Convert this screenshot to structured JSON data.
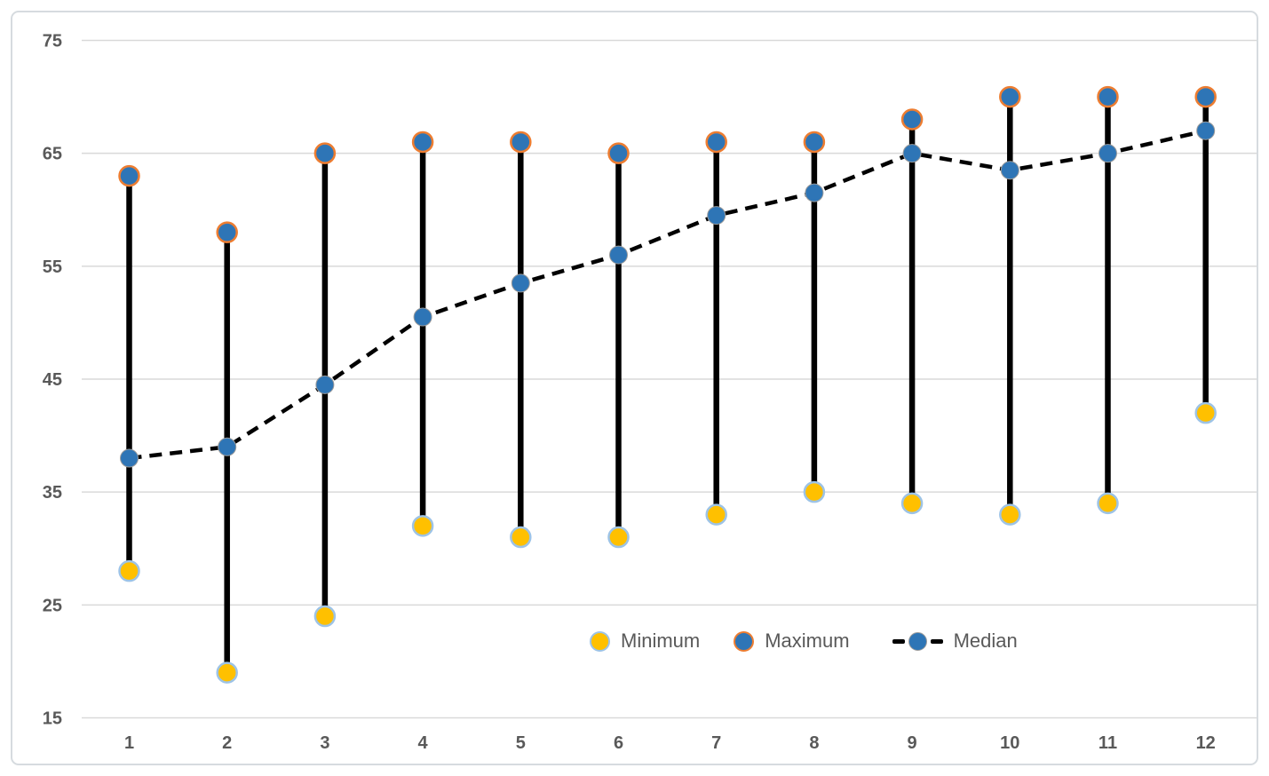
{
  "chart_data": {
    "type": "line",
    "variant": "high-low-median stock chart (vertical hi-lo bars with min/max/median markers)",
    "title": "",
    "xlabel": "",
    "ylabel": "",
    "categories": [
      1,
      2,
      3,
      4,
      5,
      6,
      7,
      8,
      9,
      10,
      11,
      12
    ],
    "xtick_labels": [
      "1",
      "2",
      "3",
      "4",
      "5",
      "6",
      "7",
      "8",
      "9",
      "10",
      "11",
      "12"
    ],
    "yticks": [
      15,
      25,
      35,
      45,
      55,
      65,
      75
    ],
    "ytick_labels": [
      "15",
      "25",
      "35",
      "45",
      "55",
      "65",
      "75"
    ],
    "ylim": [
      15,
      75
    ],
    "grid": "horizontal",
    "legend_position": "inside-bottom-right",
    "series": [
      {
        "name": "Minimum",
        "marker": "circle",
        "values": [
          28,
          19,
          24,
          32,
          31,
          31,
          33,
          35,
          34,
          33,
          34,
          42
        ]
      },
      {
        "name": "Maximum",
        "marker": "circle",
        "values": [
          63,
          58,
          65,
          66,
          66,
          65,
          66,
          66,
          68,
          70,
          70,
          70
        ]
      },
      {
        "name": "Median",
        "marker": "circle",
        "line_style": "dashed",
        "values": [
          38,
          39,
          44.5,
          50.5,
          53.5,
          56,
          59.5,
          61.5,
          65,
          63.5,
          65,
          67
        ]
      }
    ],
    "hi_lo_bars": true,
    "colors": {
      "minimum_fill": "#FFC000",
      "minimum_stroke": "#9DC3E6",
      "maximum_fill": "#2E75B6",
      "maximum_stroke": "#ED7D31",
      "median_fill": "#2E75B6",
      "median_stroke": "#9B9B9B",
      "median_line": "#000000",
      "hi_lo_line": "#000000",
      "gridline": "#D9D9D9",
      "axis_text": "#595959",
      "frame_border": "#D6DBDF"
    }
  }
}
